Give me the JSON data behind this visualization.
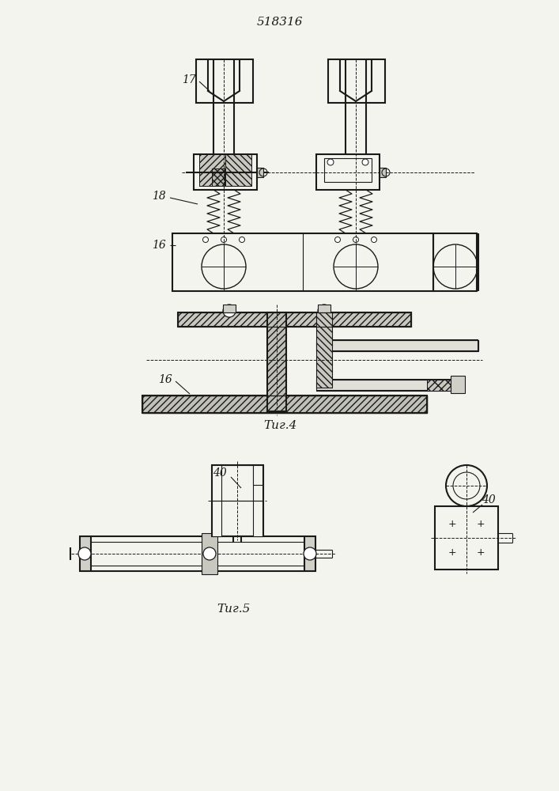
{
  "title_text": "518316",
  "fig4_label": "Τиг.4",
  "fig5_label": "Τиг.5",
  "label_17": "17",
  "label_18": "18",
  "label_16_fig1": "16",
  "label_16_fig4": "16",
  "label_40_left": "40",
  "label_40_right": "40",
  "line_color": "#1a1a1a",
  "bg_color": "#f4f4ef",
  "lw_thick": 1.5,
  "lw_thin": 0.8,
  "lw_dash": 0.7
}
